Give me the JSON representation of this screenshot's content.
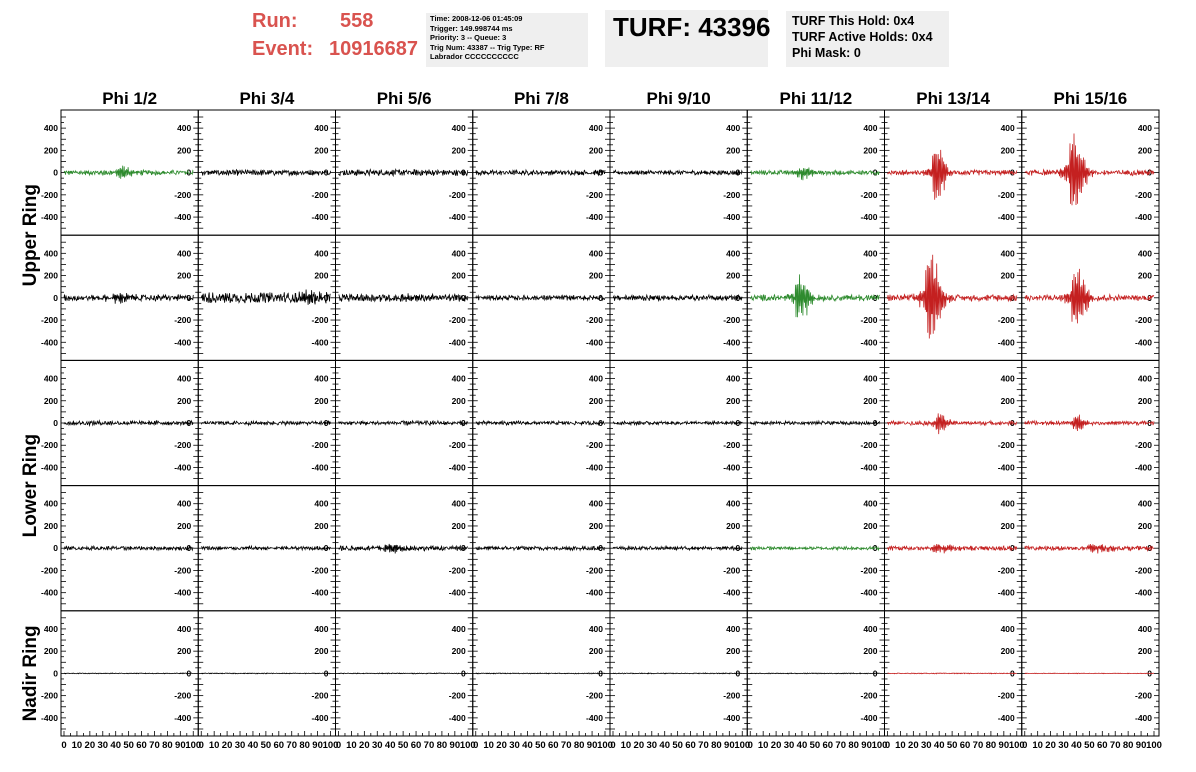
{
  "header": {
    "run_label": "Run:",
    "run_value": "558",
    "event_label": "Event:",
    "event_value": "10916687",
    "info_lines": [
      "Time: 2008-12-06 01:45:09",
      "Trigger: 149.998744 ms",
      "Priority: 3 -- Queue: 3",
      "Trig Num: 43387 -- Trig Type: RF",
      "Labrador CCCCCCCCCC"
    ],
    "turf": "TURF: 43396",
    "turf_status": [
      "TURF This Hold: 0x4",
      "TURF Active Holds: 0x4",
      "Phi Mask: 0"
    ]
  },
  "colors": {
    "green": "#2e8b2e",
    "red": "#c42020",
    "black": "#000000",
    "header_red": "#d9534f"
  },
  "chart_data": {
    "type": "line",
    "columns": [
      "Phi 1/2",
      "Phi 3/4",
      "Phi 5/6",
      "Phi 7/8",
      "Phi 9/10",
      "Phi 11/12",
      "Phi 13/14",
      "Phi 15/16"
    ],
    "rows": [
      "Upper Ring",
      "Lower Ring",
      "Nadir Ring"
    ],
    "ylim": [
      -500,
      500
    ],
    "xlim": [
      0,
      100
    ],
    "y_ticks": [
      400,
      200,
      0,
      -200,
      -400
    ],
    "x_tick_labels": [
      "0",
      "10",
      "20",
      "30",
      "40",
      "50",
      "60",
      "70",
      "80",
      "90",
      "100"
    ],
    "panel_rows": [
      {
        "ring": "Upper Ring",
        "panels": [
          {
            "color": "green",
            "noise": 18,
            "burst": {
              "center": 45,
              "amp": 60,
              "width": 6
            }
          },
          {
            "color": "black",
            "noise": 20,
            "burst": null
          },
          {
            "color": "black",
            "noise": 22,
            "burst": null
          },
          {
            "color": "black",
            "noise": 18,
            "burst": null
          },
          {
            "color": "black",
            "noise": 16,
            "burst": null
          },
          {
            "color": "green",
            "noise": 16,
            "burst": {
              "center": 40,
              "amp": 60,
              "width": 6
            }
          },
          {
            "color": "red",
            "noise": 18,
            "burst": {
              "center": 38,
              "amp": 300,
              "width": 5
            }
          },
          {
            "color": "red",
            "noise": 20,
            "burst": {
              "center": 38,
              "amp": 380,
              "width": 6
            }
          }
        ]
      },
      {
        "ring": "Upper Ring",
        "panels": [
          {
            "color": "black",
            "noise": 22,
            "burst": {
              "center": 42,
              "amp": 40,
              "width": 8
            }
          },
          {
            "color": "black",
            "noise": 38,
            "burst": {
              "center": 80,
              "amp": 60,
              "width": 10
            }
          },
          {
            "color": "black",
            "noise": 26,
            "burst": {
              "center": 50,
              "amp": 30,
              "width": 10
            }
          },
          {
            "color": "black",
            "noise": 18,
            "burst": null
          },
          {
            "color": "black",
            "noise": 20,
            "burst": null
          },
          {
            "color": "green",
            "noise": 22,
            "burst": {
              "center": 38,
              "amp": 220,
              "width": 6
            }
          },
          {
            "color": "red",
            "noise": 24,
            "burst": {
              "center": 33,
              "amp": 480,
              "width": 6
            }
          },
          {
            "color": "red",
            "noise": 22,
            "burst": {
              "center": 40,
              "amp": 300,
              "width": 6
            }
          }
        ]
      },
      {
        "ring": "Lower Ring",
        "panels": [
          {
            "color": "black",
            "noise": 16,
            "burst": null
          },
          {
            "color": "black",
            "noise": 14,
            "burst": null
          },
          {
            "color": "black",
            "noise": 16,
            "burst": null
          },
          {
            "color": "black",
            "noise": 14,
            "burst": null
          },
          {
            "color": "black",
            "noise": 12,
            "burst": null
          },
          {
            "color": "black",
            "noise": 12,
            "burst": null
          },
          {
            "color": "red",
            "noise": 14,
            "burst": {
              "center": 40,
              "amp": 110,
              "width": 5
            }
          },
          {
            "color": "red",
            "noise": 14,
            "burst": {
              "center": 40,
              "amp": 80,
              "width": 5
            }
          }
        ]
      },
      {
        "ring": "Lower Ring",
        "panels": [
          {
            "color": "black",
            "noise": 14,
            "burst": null
          },
          {
            "color": "black",
            "noise": 14,
            "burst": null
          },
          {
            "color": "black",
            "noise": 18,
            "burst": {
              "center": 40,
              "amp": 40,
              "width": 8
            }
          },
          {
            "color": "black",
            "noise": 14,
            "burst": null
          },
          {
            "color": "black",
            "noise": 12,
            "burst": null
          },
          {
            "color": "green",
            "noise": 12,
            "burst": null
          },
          {
            "color": "red",
            "noise": 16,
            "burst": {
              "center": 40,
              "amp": 40,
              "width": 8
            }
          },
          {
            "color": "red",
            "noise": 16,
            "burst": {
              "center": 55,
              "amp": 40,
              "width": 10
            }
          }
        ]
      },
      {
        "ring": "Nadir Ring",
        "panels": [
          {
            "color": "black",
            "noise": 3,
            "burst": null
          },
          {
            "color": "black",
            "noise": 3,
            "burst": null
          },
          {
            "color": "black",
            "noise": 3,
            "burst": null
          },
          {
            "color": "black",
            "noise": 3,
            "burst": null
          },
          {
            "color": "black",
            "noise": 3,
            "burst": null
          },
          {
            "color": "black",
            "noise": 3,
            "burst": null
          },
          {
            "color": "red",
            "noise": 3,
            "burst": null
          },
          {
            "color": "red",
            "noise": 2,
            "burst": null
          }
        ]
      }
    ]
  }
}
